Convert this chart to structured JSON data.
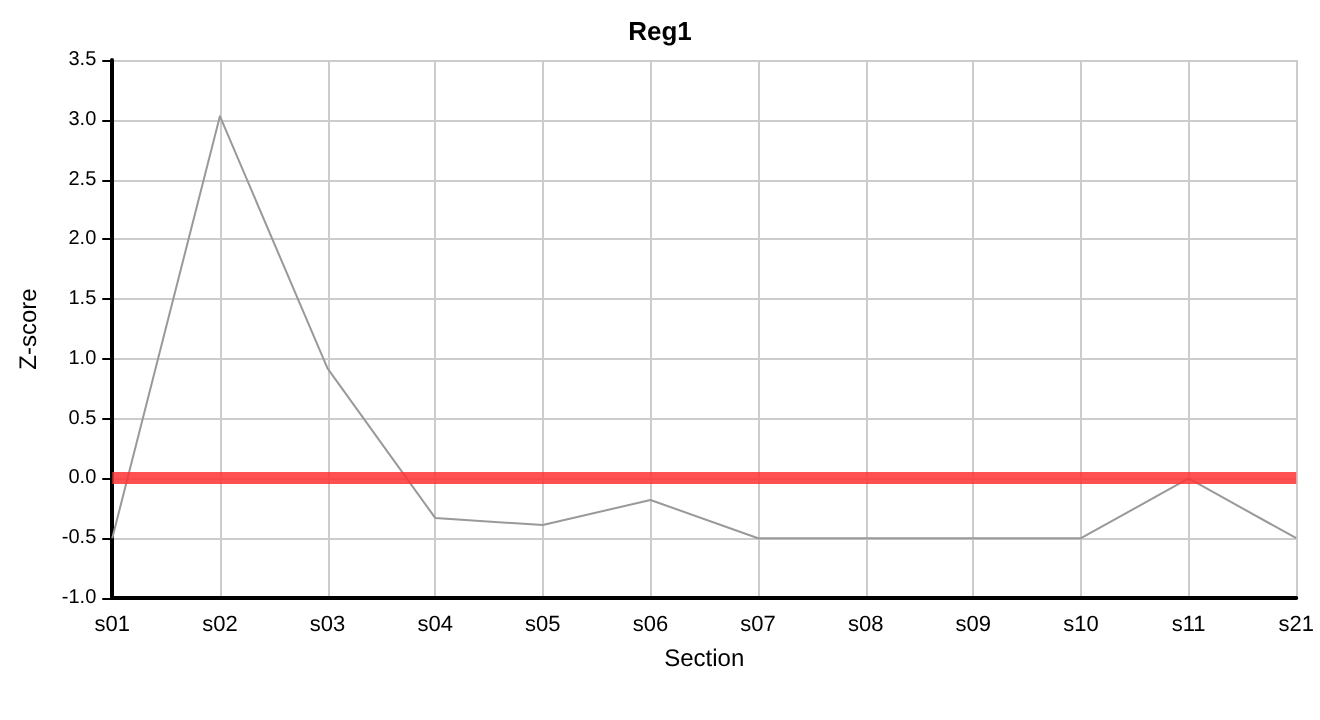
{
  "chart_data": {
    "type": "line",
    "title": "Reg1",
    "xlabel": "Section",
    "ylabel": "Z-score",
    "categories": [
      "s01",
      "s02",
      "s03",
      "s04",
      "s05",
      "s06",
      "s07",
      "s08",
      "s09",
      "s10",
      "s11",
      "s21"
    ],
    "series": [
      {
        "color": "#999999",
        "values": [
          -0.5,
          3.03,
          0.92,
          -0.33,
          -0.39,
          -0.18,
          -0.5,
          -0.5,
          -0.5,
          -0.5,
          0,
          -0.5
        ]
      }
    ],
    "ylim": [
      -1,
      3.5
    ],
    "yticks": [
      {
        "value": -1,
        "label": "-1.0"
      },
      -0.5,
      {
        "value": 0,
        "label": "0.0"
      },
      0.5,
      {
        "value": 1,
        "label": "1.0"
      },
      1.5,
      {
        "value": 2,
        "label": "2.0"
      },
      2.5,
      {
        "value": 3,
        "label": "3.0"
      },
      3.5
    ],
    "grid": true,
    "marker": "none",
    "line_style": "solid",
    "ref_lines": [
      {
        "axis": "y",
        "value": 0,
        "color": "#ff3333"
      }
    ]
  }
}
